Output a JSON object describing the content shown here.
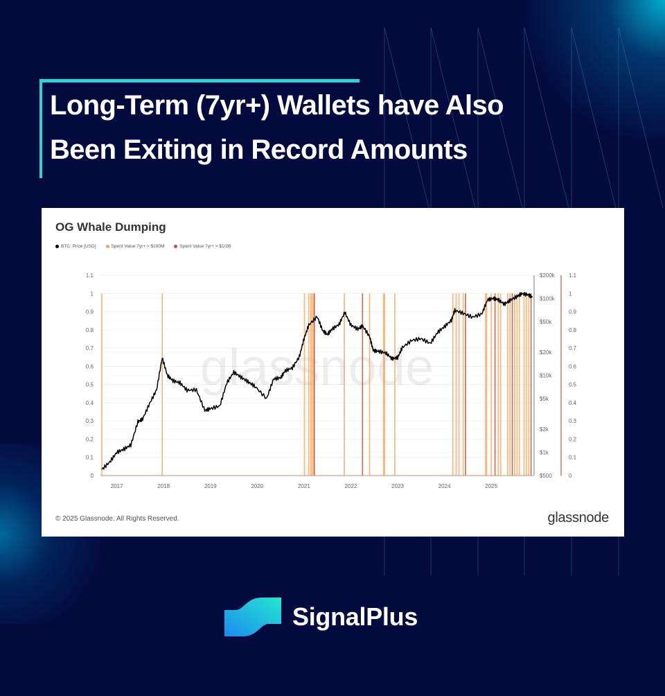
{
  "header": {
    "title_line1": "Long-Term (7yr+) Wallets have Also",
    "title_line2": "Been Exiting in Record Amounts"
  },
  "brand": {
    "name": "SignalPlus",
    "logo_icon": "signalplus-wave-logo"
  },
  "colors": {
    "background": "#030a3e",
    "accent": "#2ad4d4",
    "price": "#000000",
    "spent_100m": "#f4a55a",
    "spent_half_b": "#c9553a"
  },
  "card": {
    "copyright": "© 2025 Glassnode. All Rights Reserved.",
    "source_logo": "glassnode",
    "watermark": "glassnode"
  },
  "chart_data": {
    "type": "line",
    "title": "OG Whale Dumping",
    "legend": [
      {
        "name": "BTC: Price [USD]",
        "color": "#000000"
      },
      {
        "name": "Spent Value 7yr+ > $100M",
        "color": "#f4a55a"
      },
      {
        "name": "Spent Value 7yr+ > $1/2B",
        "color": "#c9553a"
      }
    ],
    "legend_position": "top-left",
    "x_ticks": [
      "2017",
      "2018",
      "2019",
      "2020",
      "2021",
      "2022",
      "2023",
      "2024",
      "2025"
    ],
    "x_range": [
      2016.65,
      2025.9
    ],
    "left_axis": {
      "ticks": [
        "0",
        "0.1",
        "0.2",
        "0.3",
        "0.4",
        "0.5",
        "0.6",
        "0.7",
        "0.8",
        "0.9",
        "1",
        "1.1"
      ],
      "range": [
        0,
        1.1
      ]
    },
    "price_axis": {
      "ticks": [
        "$500",
        "$1k",
        "$2k",
        "$5k",
        "$10k",
        "$20k",
        "$50k",
        "$100k",
        "$200k"
      ],
      "tick_values": [
        500,
        1000,
        2000,
        5000,
        10000,
        20000,
        50000,
        100000,
        200000
      ],
      "scale": "log",
      "range": [
        500,
        200000
      ]
    },
    "right_axis": {
      "ticks": [
        "0",
        "0.1",
        "0.2",
        "0.3",
        "0.4",
        "0.5",
        "0.6",
        "0.7",
        "0.8",
        "0.9",
        "1",
        "1.1"
      ],
      "range": [
        0,
        1.1
      ]
    },
    "grid": true,
    "series": [
      {
        "name": "BTC: Price [USD]",
        "type": "line",
        "x": [
          2016.68,
          2016.85,
          2017.0,
          2017.15,
          2017.3,
          2017.45,
          2017.55,
          2017.7,
          2017.85,
          2017.97,
          2018.08,
          2018.2,
          2018.35,
          2018.5,
          2018.7,
          2018.88,
          2019.0,
          2019.2,
          2019.35,
          2019.5,
          2019.65,
          2019.8,
          2019.95,
          2020.2,
          2020.35,
          2020.5,
          2020.6,
          2020.75,
          2020.9,
          2021.0,
          2021.1,
          2021.28,
          2021.4,
          2021.5,
          2021.6,
          2021.75,
          2021.87,
          2022.0,
          2022.15,
          2022.25,
          2022.4,
          2022.48,
          2022.6,
          2022.75,
          2022.88,
          2023.0,
          2023.1,
          2023.3,
          2023.5,
          2023.7,
          2023.85,
          2024.0,
          2024.15,
          2024.22,
          2024.4,
          2024.6,
          2024.8,
          2024.92,
          2025.05,
          2025.15,
          2025.28,
          2025.4,
          2025.55,
          2025.65,
          2025.78,
          2025.88
        ],
        "y": [
          600,
          750,
          1000,
          1100,
          1250,
          2500,
          2700,
          4300,
          6500,
          17000,
          10000,
          8500,
          8000,
          6400,
          6500,
          3500,
          3700,
          4000,
          8000,
          11000,
          9500,
          8300,
          7200,
          5000,
          9000,
          9300,
          11500,
          12500,
          17500,
          30000,
          45000,
          58000,
          38000,
          34000,
          40000,
          46000,
          66000,
          45000,
          40000,
          44000,
          32000,
          21000,
          20500,
          19500,
          16500,
          17000,
          23000,
          28500,
          30000,
          26000,
          36000,
          43000,
          52000,
          70000,
          64000,
          57000,
          63000,
          96000,
          100000,
          96000,
          84000,
          94000,
          106000,
          115000,
          112000,
          104000
        ]
      },
      {
        "name": "Spent Value 7yr+ > $100M",
        "type": "vlines",
        "value": 1,
        "x": [
          2016.68,
          2017.97,
          2021.01,
          2021.1,
          2021.14,
          2021.17,
          2021.2,
          2021.86,
          2022.4,
          2022.7,
          2022.72,
          2022.94,
          2024.18,
          2024.25,
          2024.31,
          2024.4,
          2024.88,
          2024.9,
          2025.0,
          2025.15,
          2025.2,
          2025.35,
          2025.4,
          2025.5,
          2025.55,
          2025.6,
          2025.7,
          2025.75,
          2025.8
        ]
      },
      {
        "name": "Spent Value 7yr+ > $1/2B",
        "type": "vlines",
        "value": 1,
        "x": [
          2021.22,
          2022.25,
          2024.45,
          2025.08,
          2025.45,
          2025.85
        ]
      }
    ]
  }
}
